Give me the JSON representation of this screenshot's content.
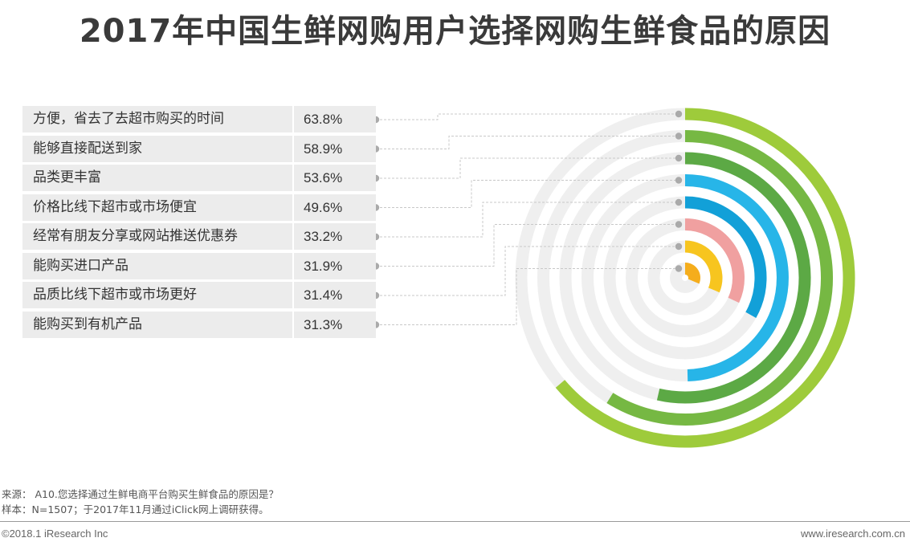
{
  "title": "2017年中国生鲜网购用户选择网购生鲜食品的原因",
  "chart_data": {
    "type": "radial-bar",
    "title": "2017年中国生鲜网购用户选择网购生鲜食品的原因",
    "max": 100,
    "unit": "%",
    "items": [
      {
        "label": "方便，省去了去超市购买的时间",
        "value": 63.8,
        "display": "63.8%",
        "color": "#9ecb3b"
      },
      {
        "label": "能够直接配送到家",
        "value": 58.9,
        "display": "58.9%",
        "color": "#76b843"
      },
      {
        "label": "品类更丰富",
        "value": 53.6,
        "display": "53.6%",
        "color": "#5ca945"
      },
      {
        "label": "价格比线下超市或市场便宜",
        "value": 49.6,
        "display": "49.6%",
        "color": "#27b5e8"
      },
      {
        "label": "经常有朋友分享或网站推送优惠券",
        "value": 33.2,
        "display": "33.2%",
        "color": "#12a0d8"
      },
      {
        "label": "能购买进口产品",
        "value": 31.9,
        "display": "31.9%",
        "color": "#f0a0a0"
      },
      {
        "label": "品质比线下超市或市场更好",
        "value": 31.4,
        "display": "31.4%",
        "color": "#f7c51f"
      },
      {
        "label": "能购买到有机产品",
        "value": 31.3,
        "display": "31.3%",
        "color": "#f5ad1c"
      }
    ],
    "track_color": "#efefef",
    "dot_color": "#aaaaaa"
  },
  "source": {
    "line1": "来源： A10.您选择通过生鲜电商平台购买生鲜食品的原因是？",
    "line2": "样本：N=1507；于2017年11月通过iClick网上调研获得。"
  },
  "footer": {
    "copyright": "©2018.1 iResearch Inc",
    "website": "www.iresearch.com.cn"
  }
}
